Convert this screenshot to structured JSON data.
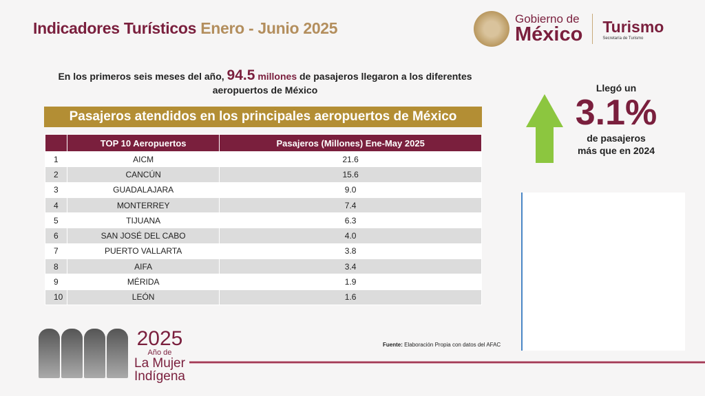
{
  "header": {
    "title": "Indicadores Turísticos",
    "period": "Enero - Junio 2025"
  },
  "logo": {
    "gob_line1": "Gobierno de",
    "gob_line2": "México",
    "turismo": "Turismo",
    "secretaria": "Secretaría de Turismo"
  },
  "intro": {
    "pre": "En los primeros seis meses del año,",
    "value": "94.5",
    "unit": "millones",
    "post": "de pasajeros llegaron a los diferentes aeropuertos de México"
  },
  "banner": "Pasajeros atendidos en los principales aeropuertos de México",
  "table": {
    "headers": [
      "",
      "TOP 10 Aeropuertos",
      "Pasajeros (Millones) Ene-May 2025"
    ],
    "rows": [
      [
        "1",
        "AICM",
        "21.6"
      ],
      [
        "2",
        "CANCÚN",
        "15.6"
      ],
      [
        "3",
        "GUADALAJARA",
        "9.0"
      ],
      [
        "4",
        "MONTERREY",
        "7.4"
      ],
      [
        "5",
        "TIJUANA",
        "6.3"
      ],
      [
        "6",
        "SAN JOSÉ DEL CABO",
        "4.0"
      ],
      [
        "7",
        "PUERTO VALLARTA",
        "3.8"
      ],
      [
        "8",
        "AIFA",
        "3.4"
      ],
      [
        "9",
        "MÉRIDA",
        "1.9"
      ],
      [
        "10",
        "LEÓN",
        "1.6"
      ]
    ]
  },
  "stat": {
    "line1": "Llegó un",
    "value": "3.1%",
    "line3": "de pasajeros",
    "line4": "más que en 2024",
    "arrow": "up-arrow-green"
  },
  "source": {
    "label": "Fuente:",
    "text": "Elaboración Propia con datos del AFAC"
  },
  "footer_logo": {
    "year": "2025",
    "sub": "Año de",
    "line1": "La Mujer",
    "line2": "Indígena"
  },
  "colors": {
    "primary": "#7a1f3d",
    "gold": "#b38e34",
    "arrow": "#8cc63f"
  }
}
